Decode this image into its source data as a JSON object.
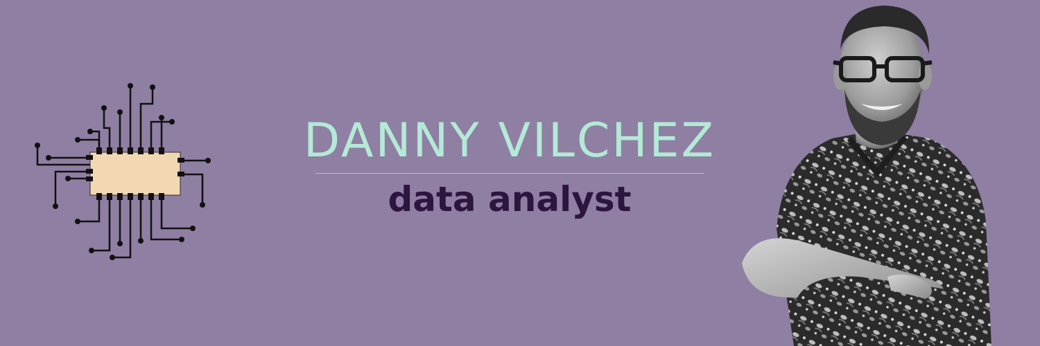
{
  "banner": {
    "name": "DANNY VILCHEZ",
    "title": "data analyst"
  },
  "colors": {
    "background": "#8f7fa3",
    "name": "#b3ead6",
    "title": "#2c1640",
    "chip_body": "#f2d8b2",
    "circuit": "#111111"
  },
  "graphics": {
    "left": "chip-icon",
    "right": "portrait-photo"
  }
}
